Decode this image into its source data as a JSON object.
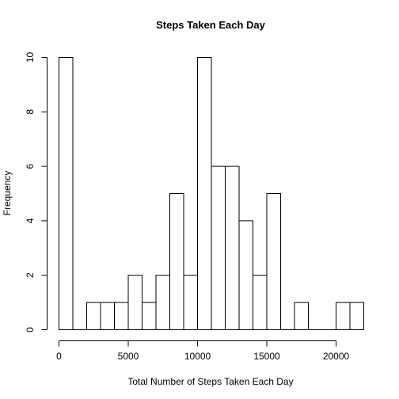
{
  "chart_data": {
    "type": "bar",
    "subtype": "histogram",
    "title": "Steps Taken Each Day",
    "xlabel": "Total Number of Steps Taken Each Day",
    "ylabel": "Frequency",
    "bin_width": 1000,
    "bins": [
      {
        "x0": 0,
        "x1": 1000,
        "count": 10
      },
      {
        "x0": 1000,
        "x1": 2000,
        "count": 0
      },
      {
        "x0": 2000,
        "x1": 3000,
        "count": 1
      },
      {
        "x0": 3000,
        "x1": 4000,
        "count": 1
      },
      {
        "x0": 4000,
        "x1": 5000,
        "count": 1
      },
      {
        "x0": 5000,
        "x1": 6000,
        "count": 2
      },
      {
        "x0": 6000,
        "x1": 7000,
        "count": 1
      },
      {
        "x0": 7000,
        "x1": 8000,
        "count": 2
      },
      {
        "x0": 8000,
        "x1": 9000,
        "count": 5
      },
      {
        "x0": 9000,
        "x1": 10000,
        "count": 2
      },
      {
        "x0": 10000,
        "x1": 11000,
        "count": 10
      },
      {
        "x0": 11000,
        "x1": 12000,
        "count": 6
      },
      {
        "x0": 12000,
        "x1": 13000,
        "count": 6
      },
      {
        "x0": 13000,
        "x1": 14000,
        "count": 4
      },
      {
        "x0": 14000,
        "x1": 15000,
        "count": 2
      },
      {
        "x0": 15000,
        "x1": 16000,
        "count": 5
      },
      {
        "x0": 16000,
        "x1": 17000,
        "count": 0
      },
      {
        "x0": 17000,
        "x1": 18000,
        "count": 1
      },
      {
        "x0": 18000,
        "x1": 19000,
        "count": 0
      },
      {
        "x0": 19000,
        "x1": 20000,
        "count": 0
      },
      {
        "x0": 20000,
        "x1": 21000,
        "count": 1
      },
      {
        "x0": 21000,
        "x1": 22000,
        "count": 1
      }
    ],
    "xlim": [
      0,
      22000
    ],
    "ylim": [
      0,
      10
    ],
    "x_ticks": [
      0,
      5000,
      10000,
      15000,
      20000
    ],
    "x_tick_labels": [
      "0",
      "5000",
      "10000",
      "15000",
      "20000"
    ],
    "y_ticks": [
      0,
      2,
      4,
      6,
      8,
      10
    ],
    "y_tick_labels": [
      "0",
      "2",
      "4",
      "6",
      "8",
      "10"
    ],
    "grid": false,
    "legend": "none",
    "colors": {
      "bar_fill": "#ffffff",
      "bar_stroke": "#000000",
      "axis": "#000000",
      "background": "#ffffff"
    }
  }
}
